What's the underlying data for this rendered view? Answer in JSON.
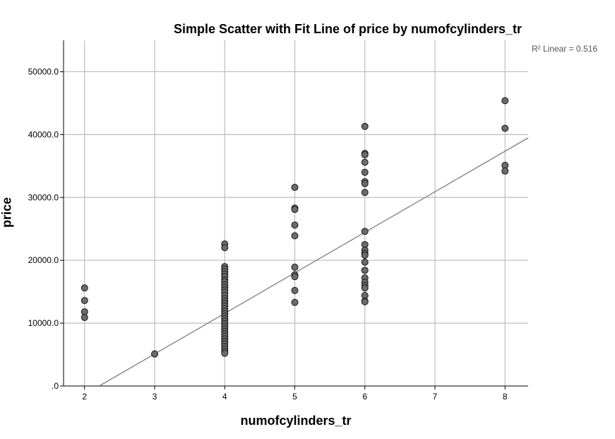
{
  "chart_data": {
    "type": "scatter",
    "title": "Simple Scatter with Fit Line of price by numofcylinders_tr",
    "xlabel": "numofcylinders_tr",
    "ylabel": "price",
    "xlim": [
      1.7,
      8.33
    ],
    "ylim": [
      0,
      55000
    ],
    "x_ticks": [
      2,
      3,
      4,
      5,
      6,
      7,
      8
    ],
    "x_tick_labels": [
      "2",
      "3",
      "4",
      "5",
      "6",
      "7",
      "8"
    ],
    "y_ticks": [
      0,
      10000,
      20000,
      30000,
      40000,
      50000
    ],
    "y_tick_labels": [
      ".0",
      "10000.0",
      "20000.0",
      "30000.0",
      "40000.0",
      "50000.0"
    ],
    "grid": true,
    "fit_line": {
      "slope": 6450,
      "intercept": -14250
    },
    "annotation": "R² Linear = 0.516",
    "colors": {
      "point_fill": "#6b6b6b",
      "point_stroke": "#1a1a1a",
      "grid": "#bdbdbd",
      "fit_line": "#7f7f7f"
    },
    "points": [
      {
        "x": 2,
        "y": 15600
      },
      {
        "x": 2,
        "y": 13600
      },
      {
        "x": 2,
        "y": 11800
      },
      {
        "x": 2,
        "y": 10900
      },
      {
        "x": 3,
        "y": 5100
      },
      {
        "x": 4,
        "y": 22600
      },
      {
        "x": 4,
        "y": 22000
      },
      {
        "x": 4,
        "y": 19000
      },
      {
        "x": 4,
        "y": 18600
      },
      {
        "x": 4,
        "y": 18200
      },
      {
        "x": 4,
        "y": 17800
      },
      {
        "x": 4,
        "y": 17400
      },
      {
        "x": 4,
        "y": 16900
      },
      {
        "x": 4,
        "y": 16600
      },
      {
        "x": 4,
        "y": 16100
      },
      {
        "x": 4,
        "y": 15700
      },
      {
        "x": 4,
        "y": 15300
      },
      {
        "x": 4,
        "y": 14900
      },
      {
        "x": 4,
        "y": 14400
      },
      {
        "x": 4,
        "y": 13900
      },
      {
        "x": 4,
        "y": 13500
      },
      {
        "x": 4,
        "y": 13100
      },
      {
        "x": 4,
        "y": 12700
      },
      {
        "x": 4,
        "y": 12300
      },
      {
        "x": 4,
        "y": 11900
      },
      {
        "x": 4,
        "y": 11500
      },
      {
        "x": 4,
        "y": 11100
      },
      {
        "x": 4,
        "y": 10700
      },
      {
        "x": 4,
        "y": 10300
      },
      {
        "x": 4,
        "y": 9900
      },
      {
        "x": 4,
        "y": 9500
      },
      {
        "x": 4,
        "y": 9100
      },
      {
        "x": 4,
        "y": 8700
      },
      {
        "x": 4,
        "y": 8300
      },
      {
        "x": 4,
        "y": 7900
      },
      {
        "x": 4,
        "y": 7500
      },
      {
        "x": 4,
        "y": 7100
      },
      {
        "x": 4,
        "y": 6700
      },
      {
        "x": 4,
        "y": 6300
      },
      {
        "x": 4,
        "y": 5900
      },
      {
        "x": 4,
        "y": 5500
      },
      {
        "x": 4,
        "y": 5200
      },
      {
        "x": 5,
        "y": 31600
      },
      {
        "x": 5,
        "y": 28300
      },
      {
        "x": 5,
        "y": 28100
      },
      {
        "x": 5,
        "y": 25600
      },
      {
        "x": 5,
        "y": 23900
      },
      {
        "x": 5,
        "y": 18900
      },
      {
        "x": 5,
        "y": 17700
      },
      {
        "x": 5,
        "y": 17400
      },
      {
        "x": 5,
        "y": 15200
      },
      {
        "x": 5,
        "y": 13300
      },
      {
        "x": 6,
        "y": 41300
      },
      {
        "x": 6,
        "y": 37000
      },
      {
        "x": 6,
        "y": 36800
      },
      {
        "x": 6,
        "y": 35600
      },
      {
        "x": 6,
        "y": 34000
      },
      {
        "x": 6,
        "y": 32500
      },
      {
        "x": 6,
        "y": 32200
      },
      {
        "x": 6,
        "y": 30800
      },
      {
        "x": 6,
        "y": 24600
      },
      {
        "x": 6,
        "y": 22500
      },
      {
        "x": 6,
        "y": 21600
      },
      {
        "x": 6,
        "y": 21100
      },
      {
        "x": 6,
        "y": 20800
      },
      {
        "x": 6,
        "y": 19700
      },
      {
        "x": 6,
        "y": 18400
      },
      {
        "x": 6,
        "y": 17200
      },
      {
        "x": 6,
        "y": 16500
      },
      {
        "x": 6,
        "y": 16000
      },
      {
        "x": 6,
        "y": 15600
      },
      {
        "x": 6,
        "y": 14400
      },
      {
        "x": 6,
        "y": 13500
      },
      {
        "x": 6,
        "y": 13400
      },
      {
        "x": 8,
        "y": 45400
      },
      {
        "x": 8,
        "y": 41000
      },
      {
        "x": 8,
        "y": 35100
      },
      {
        "x": 8,
        "y": 34200
      }
    ]
  }
}
